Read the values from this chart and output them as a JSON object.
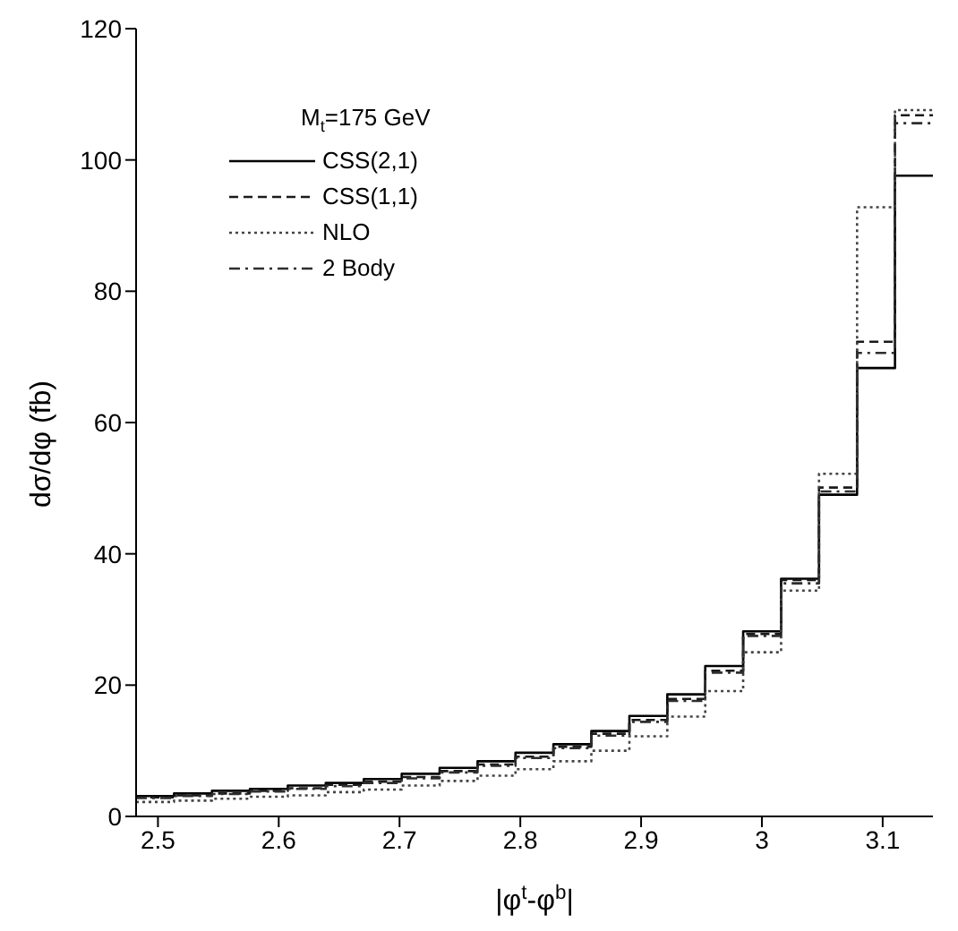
{
  "chart_data": {
    "type": "histogram",
    "xlabel": "|φ$^{t}$-φ$^{b}$|",
    "ylabel": "dσ/dφ (fb)",
    "legend_title": "M$_{t}$=175 GeV",
    "legend": "top left",
    "grid": false,
    "bins": [
      2.4819,
      2.5133,
      2.5447,
      2.5761,
      2.6075,
      2.6389,
      2.6704,
      2.7018,
      2.7332,
      2.7646,
      2.796,
      2.8274,
      2.8588,
      2.8903,
      2.9217,
      2.9531,
      2.9845,
      3.0159,
      3.0473,
      3.0788,
      3.1102,
      3.1416
    ],
    "series": [
      {
        "name": "CSS(2,1)",
        "color": "#000000",
        "line_style": "solid",
        "values": [
          3.1,
          3.5,
          3.9,
          4.2,
          4.7,
          5.1,
          5.7,
          6.5,
          7.4,
          8.4,
          9.7,
          11.0,
          13.0,
          15.3,
          18.6,
          22.9,
          28.2,
          36.2,
          49.0,
          68.3,
          97.6
        ]
      },
      {
        "name": "CSS(1,1)",
        "color": "#1a1a1a",
        "line_style": "dashed",
        "values": [
          2.9,
          3.2,
          3.5,
          3.9,
          4.3,
          4.8,
          5.3,
          6.0,
          6.9,
          7.9,
          9.1,
          10.6,
          12.6,
          14.7,
          17.9,
          22.2,
          27.8,
          36.0,
          50.1,
          72.3,
          106.8
        ]
      },
      {
        "name": "NLO",
        "color": "#444444",
        "line_style": "dotted",
        "values": [
          2.2,
          2.4,
          2.7,
          3.0,
          3.2,
          3.7,
          4.1,
          4.7,
          5.4,
          6.2,
          7.2,
          8.4,
          10.0,
          12.2,
          15.2,
          19.1,
          25.0,
          34.4,
          52.2,
          92.8,
          107.6
        ]
      },
      {
        "name": "2 Body",
        "color": "#2e2e2e",
        "line_style": "dashdot",
        "values": [
          2.8,
          3.1,
          3.4,
          3.8,
          4.2,
          4.6,
          5.1,
          5.8,
          6.7,
          7.7,
          8.9,
          10.4,
          12.3,
          14.4,
          17.6,
          21.9,
          27.5,
          35.5,
          49.5,
          70.6,
          105.6
        ]
      }
    ],
    "xlim": [
      2.4819,
      3.1416
    ],
    "xticks": [
      2.5,
      2.6,
      2.7,
      2.8,
      2.9,
      3,
      3.1
    ],
    "ylim": [
      0,
      120
    ],
    "yticks": [
      0,
      20,
      40,
      60,
      80,
      100,
      120
    ]
  }
}
